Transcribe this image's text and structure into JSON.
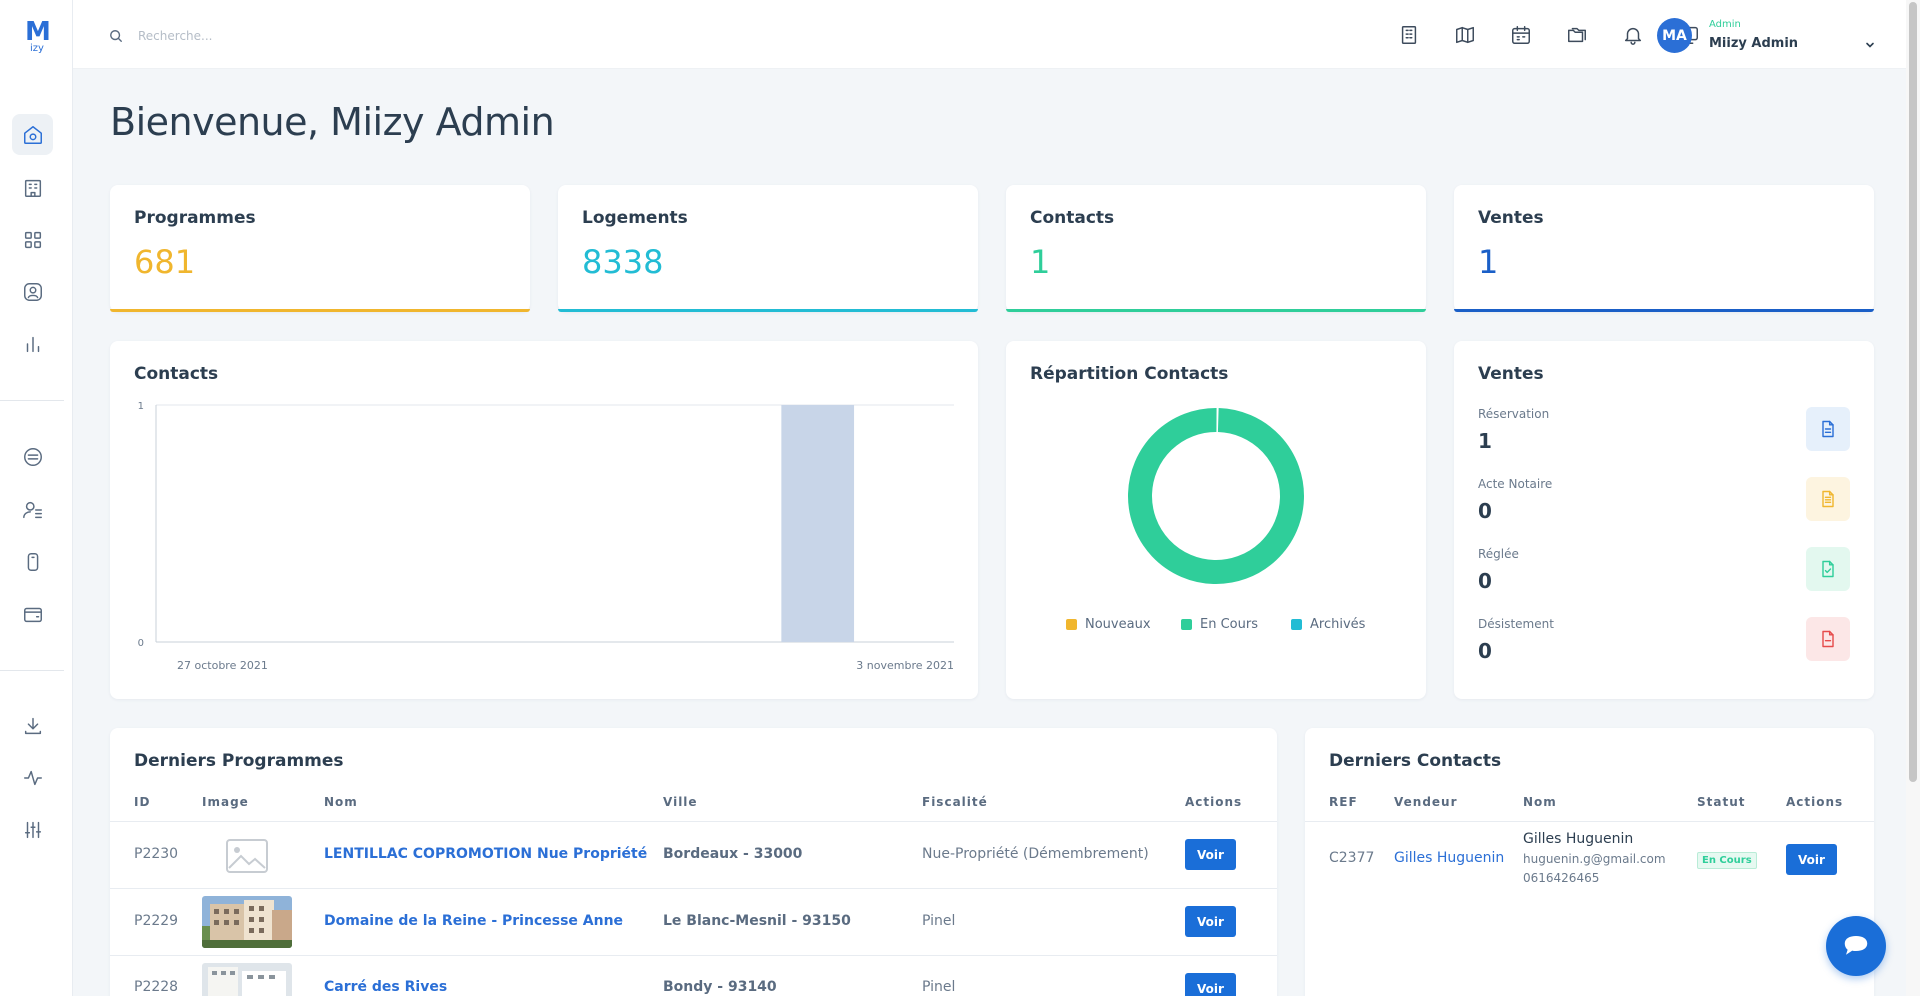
{
  "logo": {
    "letter": "M",
    "sub": "izy"
  },
  "search": {
    "placeholder": "Recherche..."
  },
  "user": {
    "initials": "MA",
    "role": "Admin",
    "name": "Miizy Admin"
  },
  "welcome": "Bienvenue, Miizy Admin",
  "stats": [
    {
      "label": "Programmes",
      "value": "681",
      "color": "#f0b62e"
    },
    {
      "label": "Logements",
      "value": "8338",
      "color": "#22bcd4"
    },
    {
      "label": "Contacts",
      "value": "1",
      "color": "#2fce9a"
    },
    {
      "label": "Ventes",
      "value": "1",
      "color": "#1a5fc7"
    }
  ],
  "contacts_chart": {
    "title": "Contacts",
    "chart_data": {
      "type": "bar",
      "categories": [
        "27 octobre 2021",
        "",
        "",
        "",
        "",
        "",
        "",
        "",
        "3 novembre 2021"
      ],
      "values": [
        0,
        0,
        0,
        0,
        0,
        0,
        0,
        0,
        1
      ],
      "x_tick_labels": [
        "27 octobre 2021",
        "3 novembre 2021"
      ],
      "y_ticks": [
        "1",
        "0"
      ],
      "ylim": [
        0,
        1
      ]
    }
  },
  "repartition": {
    "title": "Répartition Contacts",
    "chart_data": {
      "type": "pie",
      "labels": [
        "Nouveaux",
        "En Cours",
        "Archivés"
      ],
      "values": [
        0,
        1,
        0
      ],
      "colors": [
        "#f0b62e",
        "#2fce9a",
        "#22bcd4"
      ]
    }
  },
  "ventes": {
    "title": "Ventes",
    "rows": [
      {
        "label": "Réservation",
        "value": "1",
        "icon": "document-icon",
        "color": "#2b6fd6",
        "bg": "#e6f0fb"
      },
      {
        "label": "Acte Notaire",
        "value": "0",
        "icon": "notary-document-icon",
        "color": "#f0b62e",
        "bg": "#fdf4e0"
      },
      {
        "label": "Réglée",
        "value": "0",
        "icon": "check-document-icon",
        "color": "#2fce9a",
        "bg": "#e3f8ef"
      },
      {
        "label": "Désistement",
        "value": "0",
        "icon": "cancel-document-icon",
        "color": "#e64b4b",
        "bg": "#fce7e7"
      }
    ]
  },
  "programmes": {
    "title": "Derniers Programmes",
    "headers": [
      "ID",
      "Image",
      "Nom",
      "Ville",
      "Fiscalité",
      "Actions"
    ],
    "rows": [
      {
        "id": "P2230",
        "name": "LENTILLAC COPROMOTION Nue Propriété",
        "city": "Bordeaux - 33000",
        "fiscal": "Nue-Propriété (Démembrement)",
        "action": "Voir",
        "image": "placeholder"
      },
      {
        "id": "P2229",
        "name": "Domaine de la Reine - Princesse Anne",
        "city": "Le Blanc-Mesnil - 93150",
        "fiscal": "Pinel",
        "action": "Voir",
        "image": "building-photo"
      },
      {
        "id": "P2228",
        "name": "Carré des Rives",
        "city": "Bondy - 93140",
        "fiscal": "Pinel",
        "action": "Voir",
        "image": "building-photo-white"
      }
    ]
  },
  "derniers_contacts": {
    "title": "Derniers Contacts",
    "headers": [
      "REF",
      "Vendeur",
      "Nom",
      "Statut",
      "Actions"
    ],
    "rows": [
      {
        "ref": "C2377",
        "vendeur": "Gilles Huguenin",
        "nom": "Gilles Huguenin",
        "email": "huguenin.g@gmail.com",
        "phone": "0616426465",
        "statut": "En Cours",
        "action": "Voir"
      }
    ]
  }
}
